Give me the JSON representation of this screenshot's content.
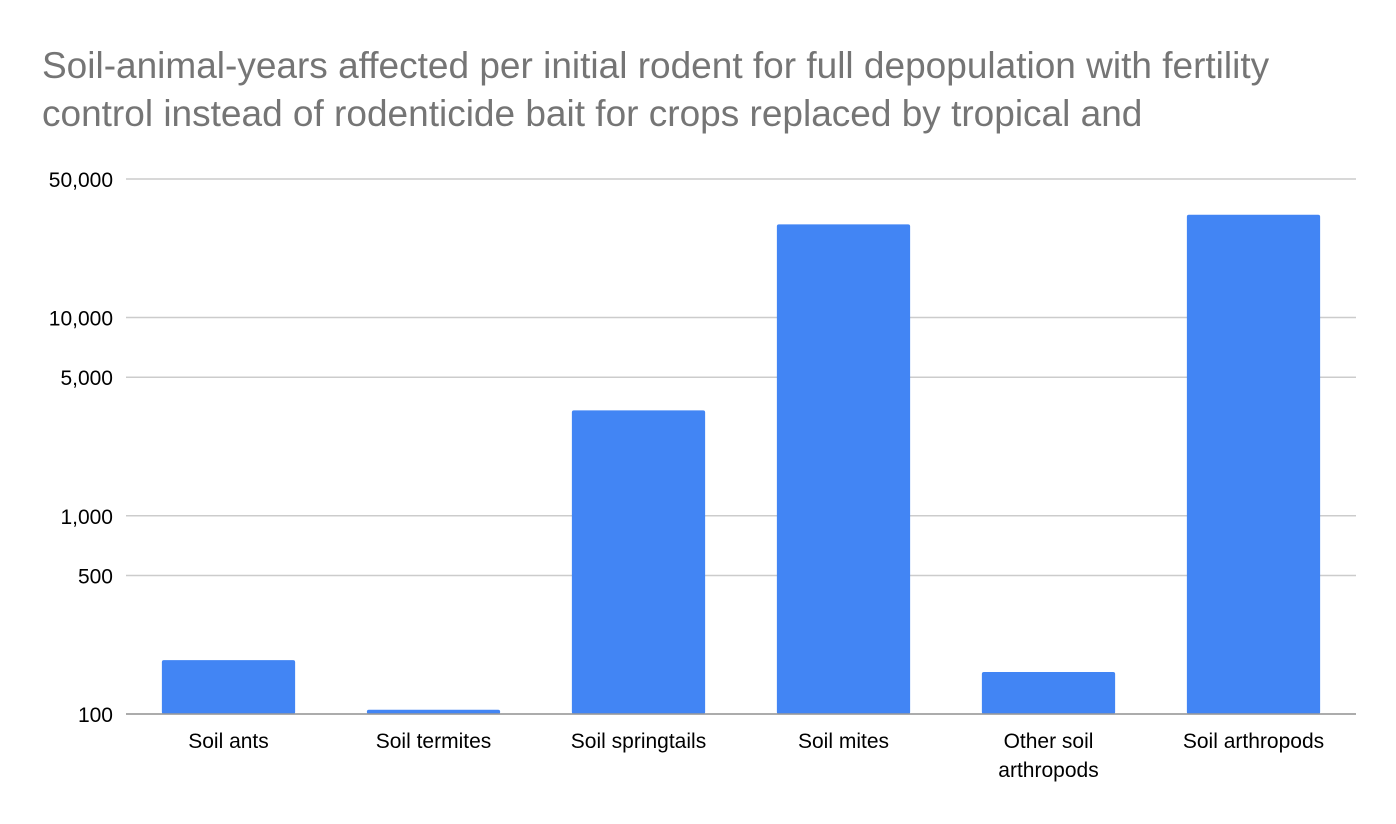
{
  "chart_data": {
    "type": "bar",
    "title": "Soil-animal-years affected per initial rodent for full depopulation with fertility control instead of rodenticide bait for crops replaced by tropical and",
    "xlabel": "",
    "ylabel": "",
    "scale": "log",
    "ylim": [
      100,
      50000
    ],
    "yticks": [
      {
        "value": 100,
        "label": "100"
      },
      {
        "value": 500,
        "label": "500"
      },
      {
        "value": 1000,
        "label": "1,000"
      },
      {
        "value": 5000,
        "label": "5,000"
      },
      {
        "value": 10000,
        "label": "10,000"
      },
      {
        "value": 50000,
        "label": "50,000"
      }
    ],
    "categories": [
      [
        "Soil ants"
      ],
      [
        "Soil termites"
      ],
      [
        "Soil springtails"
      ],
      [
        "Soil mites"
      ],
      [
        "Other soil",
        "arthropods"
      ],
      [
        "Soil arthropods"
      ]
    ],
    "values": [
      187,
      105,
      3400,
      29500,
      163,
      33000
    ],
    "grid": true,
    "legend": "none",
    "colors": {
      "bar": "#4285f4",
      "grid": "#cccccc",
      "axis": "#999999",
      "title": "#757575",
      "text": "#000000"
    }
  }
}
